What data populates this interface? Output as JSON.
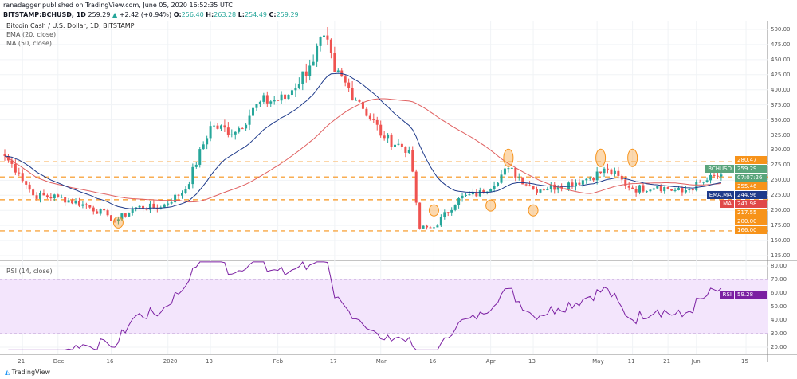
{
  "header": {
    "publisher": "ranadagger published on TradingView.com, June 05, 2020 16:52:35 UTC",
    "symbol": "BITSTAMP:BCHUSD, 1D",
    "price": "259.29",
    "change": "+2.42 (+0.94%)",
    "o_label": "O:",
    "o": "256.40",
    "h_label": "H:",
    "h": "263.28",
    "l_label": "L:",
    "l": "254.49",
    "c_label": "C:",
    "c": "259.29"
  },
  "legend": {
    "title": "Bitcoin Cash / U.S. Dollar, 1D, BITSTAMP",
    "ema": "EMA (20, close)",
    "ma": "MA (50, close)",
    "rsi": "RSI (14, close)"
  },
  "colors": {
    "up": "#26a69a",
    "down": "#ef5350",
    "ema": "#1e3a8a",
    "ma": "#e06060",
    "level": "#f7931a",
    "rsi": "#7b1fa2",
    "rsi_band": "#f3e5fc"
  },
  "price_axis": [
    "500.00",
    "475.00",
    "450.00",
    "425.00",
    "400.00",
    "375.00",
    "350.00",
    "325.00",
    "300.00",
    "275.00",
    "250.00",
    "225.00",
    "200.00",
    "175.00",
    "150.00",
    "125.00"
  ],
  "rsi_axis": [
    "80.00",
    "70.00",
    "60.00",
    "50.00",
    "40.00",
    "30.00",
    "20.00"
  ],
  "time_axis": [
    {
      "label": "21",
      "day": 5
    },
    {
      "label": "Dec",
      "day": 15
    },
    {
      "label": "16",
      "day": 30
    },
    {
      "label": "2020",
      "day": 46
    },
    {
      "label": "13",
      "day": 58
    },
    {
      "label": "Feb",
      "day": 77
    },
    {
      "label": "17",
      "day": 93
    },
    {
      "label": "Mar",
      "day": 106
    },
    {
      "label": "16",
      "day": 121
    },
    {
      "label": "Apr",
      "day": 137
    },
    {
      "label": "13",
      "day": 149
    },
    {
      "label": "May",
      "day": 167
    },
    {
      "label": "11",
      "day": 177
    },
    {
      "label": "21",
      "day": 187
    },
    {
      "label": "Jun",
      "day": 195
    },
    {
      "label": "15",
      "day": 209
    }
  ],
  "tags": {
    "symbol": "BCHUSD",
    "price": "259.29",
    "countdown": "07:07:26",
    "ema_label": "EMA,MA",
    "ema": "244.96",
    "ma_label": "MA",
    "ma": "241.98",
    "rsi_label": "RSI",
    "rsi": "59.28"
  },
  "levels": [
    {
      "value": 280.47,
      "label": "280.47"
    },
    {
      "value": 255.46,
      "label": "255.46"
    },
    {
      "value": 217.55,
      "label": "217.55"
    },
    {
      "value": 200,
      "label": "200.00"
    },
    {
      "value": 166,
      "label": "166.00"
    }
  ],
  "chart_data": {
    "type": "candlestick",
    "title": "Bitcoin Cash / U.S. Dollar, 1D, BITSTAMP",
    "ylim": [
      115,
      510
    ],
    "rsi_ylim": [
      17,
      84
    ],
    "weekly_closes": [
      [
        0,
        290
      ],
      [
        4,
        262
      ],
      [
        8,
        225
      ],
      [
        15,
        222
      ],
      [
        22,
        210
      ],
      [
        29,
        192
      ],
      [
        31,
        182
      ],
      [
        37,
        205
      ],
      [
        44,
        205
      ],
      [
        51,
        235
      ],
      [
        58,
        340
      ],
      [
        65,
        330
      ],
      [
        72,
        380
      ],
      [
        79,
        385
      ],
      [
        86,
        440
      ],
      [
        90,
        490
      ],
      [
        93,
        430
      ],
      [
        100,
        380
      ],
      [
        107,
        320
      ],
      [
        114,
        300
      ],
      [
        117,
        170
      ],
      [
        121,
        172
      ],
      [
        128,
        220
      ],
      [
        135,
        230
      ],
      [
        142,
        270
      ],
      [
        149,
        235
      ],
      [
        156,
        240
      ],
      [
        163,
        250
      ],
      [
        170,
        268
      ],
      [
        177,
        235
      ],
      [
        184,
        240
      ],
      [
        191,
        230
      ],
      [
        198,
        250
      ],
      [
        202,
        259.29
      ]
    ]
  },
  "footer": {
    "brand": "TradingView"
  }
}
